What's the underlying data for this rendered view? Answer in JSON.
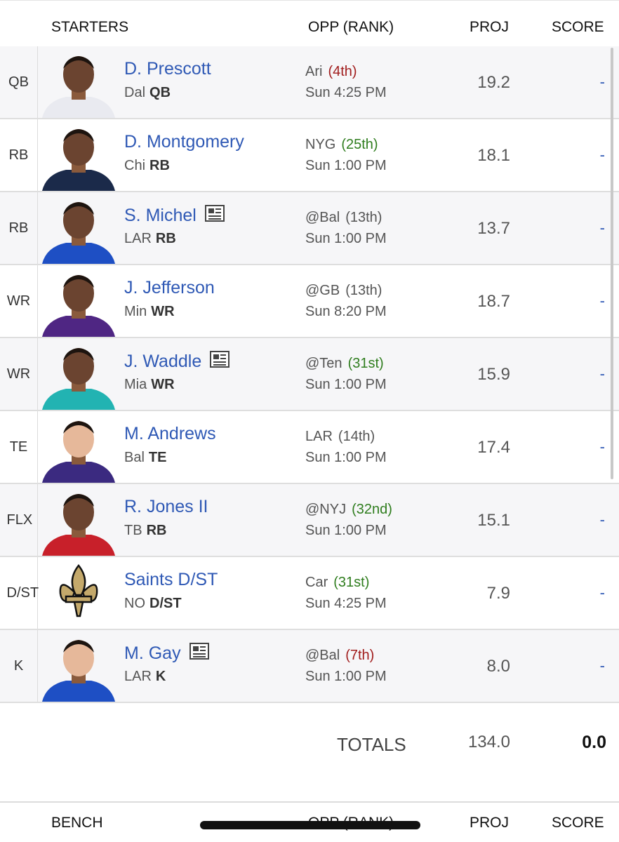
{
  "header": {
    "starters": "STARTERS",
    "opp": "OPP (RANK)",
    "proj": "PROJ",
    "score": "SCORE"
  },
  "rows": [
    {
      "slot": "QB",
      "name": "D. Prescott",
      "news": false,
      "team": "Dal",
      "pos": "QB",
      "opp": "Ari",
      "rank": "(4th)",
      "rank_color": "#a11d1d",
      "time": "Sun 4:25 PM",
      "proj": "19.2",
      "score": "-",
      "jersey": "#e9eaf0"
    },
    {
      "slot": "RB",
      "name": "D. Montgomery",
      "news": false,
      "team": "Chi",
      "pos": "RB",
      "opp": "NYG",
      "rank": "(25th)",
      "rank_color": "#2f7d1e",
      "time": "Sun 1:00 PM",
      "proj": "18.1",
      "score": "-",
      "jersey": "#1b2a4a"
    },
    {
      "slot": "RB",
      "name": "S. Michel",
      "news": true,
      "team": "LAR",
      "pos": "RB",
      "opp": "@Bal",
      "rank": "(13th)",
      "rank_color": "#555555",
      "time": "Sun 1:00 PM",
      "proj": "13.7",
      "score": "-",
      "jersey": "#1e4fc4"
    },
    {
      "slot": "WR",
      "name": "J. Jefferson",
      "news": false,
      "team": "Min",
      "pos": "WR",
      "opp": "@GB",
      "rank": "(13th)",
      "rank_color": "#555555",
      "time": "Sun 8:20 PM",
      "proj": "18.7",
      "score": "-",
      "jersey": "#4f2683"
    },
    {
      "slot": "WR",
      "name": "J. Waddle",
      "news": true,
      "team": "Mia",
      "pos": "WR",
      "opp": "@Ten",
      "rank": "(31st)",
      "rank_color": "#2f7d1e",
      "time": "Sun 1:00 PM",
      "proj": "15.9",
      "score": "-",
      "jersey": "#22b3b2"
    },
    {
      "slot": "TE",
      "name": "M. Andrews",
      "news": false,
      "team": "Bal",
      "pos": "TE",
      "opp": "LAR",
      "rank": "(14th)",
      "rank_color": "#555555",
      "time": "Sun 1:00 PM",
      "proj": "17.4",
      "score": "-",
      "jersey": "#3b2a80"
    },
    {
      "slot": "FLX",
      "name": "R. Jones II",
      "news": false,
      "team": "TB",
      "pos": "RB",
      "opp": "@NYJ",
      "rank": "(32nd)",
      "rank_color": "#2f7d1e",
      "time": "Sun 1:00 PM",
      "proj": "15.1",
      "score": "-",
      "jersey": "#c8202a"
    },
    {
      "slot": "D/ST",
      "name": "Saints D/ST",
      "news": false,
      "team": "NO",
      "pos": "D/ST",
      "opp": "Car",
      "rank": "(31st)",
      "rank_color": "#2f7d1e",
      "time": "Sun 4:25 PM",
      "proj": "7.9",
      "score": "-",
      "jersey": null
    },
    {
      "slot": "K",
      "name": "M. Gay",
      "news": true,
      "team": "LAR",
      "pos": "K",
      "opp": "@Bal",
      "rank": "(7th)",
      "rank_color": "#a11d1d",
      "time": "Sun 1:00 PM",
      "proj": "8.0",
      "score": "-",
      "jersey": "#1e4fc4"
    }
  ],
  "totals": {
    "label": "TOTALS",
    "proj": "134.0",
    "score": "0.0"
  },
  "bench_header": {
    "bench": "BENCH",
    "opp": "OPP (RANK)",
    "proj": "PROJ",
    "score": "SCORE"
  }
}
